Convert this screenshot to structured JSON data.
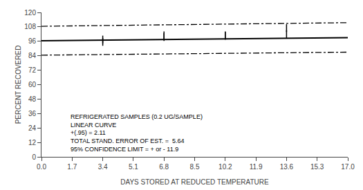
{
  "chart_data": {
    "type": "line",
    "xlabel": "DAYS STORED AT REDUCED TEMPERATURE",
    "ylabel": "PERCENT RECOVERED",
    "color": "#000000",
    "x": [
      0.0,
      17.0
    ],
    "series": [
      {
        "values": [
          96.5,
          99.0
        ],
        "line_style": "solid"
      },
      {
        "values": [
          108.5,
          111.5
        ],
        "line_style": "dashdot"
      },
      {
        "values": [
          84.5,
          87.0
        ],
        "line_style": "dashdot"
      },
      {
        "type": "scatter",
        "marker": "line-ns",
        "x": [
          3.4,
          3.4,
          6.8,
          6.8,
          10.2,
          10.2,
          13.6,
          13.6
        ],
        "values": [
          97.5,
          95.5,
          99.5,
          101.0,
          101.0,
          100.5,
          107.0,
          102.0
        ]
      }
    ],
    "xlim": [
      0.0,
      17.0
    ],
    "ylim": [
      0,
      120
    ],
    "xticks": [
      {
        "value": 0.0,
        "label": "0.0"
      },
      1.7,
      3.4,
      5.1,
      6.8,
      8.5,
      10.2,
      11.9,
      13.6,
      15.3,
      {
        "value": 17.0,
        "label": "17.0"
      }
    ],
    "yticks": [
      0,
      12,
      24,
      36,
      48,
      60,
      72,
      84,
      96,
      108,
      120
    ],
    "annotations": [
      "REFRIGERATED SAMPLES (0.2 UG/SAMPLE)",
      "LINEAR CURVE",
      "+(.95) = 2.11",
      "TOTAL STAND. ERROR OF EST. =  5.64",
      "95% CONFIDENCE LIMIT = + or - 11.9"
    ],
    "grid": false
  }
}
